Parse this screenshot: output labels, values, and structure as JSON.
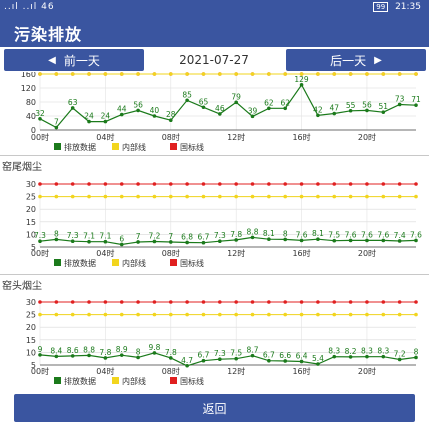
{
  "status_bar": {
    "signal": "..ıl ..ıl 46",
    "battery": "99",
    "time": "21:35"
  },
  "header": {
    "title": "污染排放"
  },
  "nav": {
    "prev_label": "前一天",
    "date": "2021-07-27",
    "next_label": "后一天"
  },
  "back_label": "返回",
  "colors": {
    "accent": "#3a55a0",
    "emission": "#1b7a1b",
    "internal": "#f2d51e",
    "national": "#e02020"
  },
  "charts": {
    "c1": {
      "title": "",
      "legend": {
        "emission": "排放数据",
        "internal": "内部线",
        "national": "国标线"
      }
    },
    "c2": {
      "title": "窑尾烟尘",
      "legend": {
        "emission": "排放数据",
        "internal": "内部线",
        "national": "国标线"
      }
    },
    "c3": {
      "title": "窑头烟尘",
      "legend": {
        "emission": "排放数据",
        "internal": "内部线",
        "national": "国标线"
      }
    }
  },
  "chart_data": [
    {
      "type": "line",
      "title": "",
      "x": [
        "00时",
        "01时",
        "02时",
        "03时",
        "04时",
        "05时",
        "06时",
        "07时",
        "08时",
        "09时",
        "10时",
        "11时",
        "12时",
        "13时",
        "14时",
        "15时",
        "16时",
        "17时",
        "18时",
        "19时",
        "20时",
        "21时",
        "22时",
        "23时"
      ],
      "x_tick_labels": [
        "00时",
        "04时",
        "08时",
        "12时",
        "16时",
        "20时"
      ],
      "ylim": [
        0,
        160
      ],
      "y_ticks": [
        0,
        40,
        80,
        120,
        160
      ],
      "series": [
        {
          "name": "排放数据",
          "values": [
            32,
            7,
            63,
            24,
            24,
            44,
            56,
            40,
            28,
            85,
            65,
            46,
            79,
            39,
            62,
            62,
            129,
            42,
            47,
            55,
            56,
            51,
            73,
            71
          ],
          "data_labels": [
            "32",
            "7",
            "63",
            "24",
            "24",
            "44",
            "56",
            "40",
            "28",
            "85",
            "65",
            "46",
            "79",
            "39",
            "62",
            "62",
            "129",
            "42",
            "47",
            "55",
            "56",
            "51",
            "73",
            "71"
          ]
        },
        {
          "name": "内部线",
          "constant": 160
        },
        {
          "name": "国标线",
          "constant": 160
        }
      ],
      "legend": "bottom",
      "grid": true
    },
    {
      "type": "line",
      "title": "窑尾烟尘",
      "x": [
        "00时",
        "01时",
        "02时",
        "03时",
        "04时",
        "05时",
        "06时",
        "07时",
        "08时",
        "09时",
        "10时",
        "11时",
        "12时",
        "13时",
        "14时",
        "15时",
        "16时",
        "17时",
        "18时",
        "19时",
        "20时",
        "21时",
        "22时",
        "23时"
      ],
      "x_tick_labels": [
        "00时",
        "04时",
        "08时",
        "12时",
        "16时",
        "20时"
      ],
      "ylim": [
        5,
        30
      ],
      "y_ticks": [
        5,
        10,
        15,
        20,
        25,
        30
      ],
      "series": [
        {
          "name": "排放数据",
          "values": [
            7.3,
            8.0,
            7.3,
            7.1,
            7.1,
            6.0,
            7.0,
            7.2,
            7.0,
            6.8,
            6.7,
            7.3,
            7.8,
            8.8,
            8.1,
            8.0,
            7.6,
            8.1,
            7.5,
            7.6,
            7.6,
            7.6,
            7.4,
            7.6
          ],
          "data_labels": [
            "7.3",
            "8",
            "7.3",
            "7.1",
            "7.1",
            "6",
            "7",
            "7.2",
            "7",
            "6.8",
            "6.7",
            "7.3",
            "7.8",
            "8.8",
            "8.1",
            "8",
            "7.6",
            "8.1",
            "7.5",
            "7.6",
            "7.6",
            "7.6",
            "7.4",
            "7.6"
          ]
        },
        {
          "name": "内部线",
          "constant": 25
        },
        {
          "name": "国标线",
          "constant": 30
        }
      ],
      "legend": "bottom",
      "grid": true
    },
    {
      "type": "line",
      "title": "窑头烟尘",
      "x": [
        "00时",
        "01时",
        "02时",
        "03时",
        "04时",
        "05时",
        "06时",
        "07时",
        "08时",
        "09时",
        "10时",
        "11时",
        "12时",
        "13时",
        "14时",
        "15时",
        "16时",
        "17时",
        "18时",
        "19时",
        "20时",
        "21时",
        "22时",
        "23时"
      ],
      "x_tick_labels": [
        "00时",
        "04时",
        "08时",
        "12时",
        "16时",
        "20时"
      ],
      "ylim": [
        5,
        30
      ],
      "y_ticks": [
        5,
        10,
        15,
        20,
        25,
        30
      ],
      "series": [
        {
          "name": "排放数据",
          "values": [
            9.0,
            8.4,
            8.6,
            8.8,
            7.8,
            8.9,
            8.0,
            9.8,
            7.8,
            4.7,
            6.7,
            7.3,
            7.5,
            8.7,
            6.7,
            6.6,
            6.4,
            5.4,
            8.3,
            8.2,
            8.3,
            8.3,
            7.2,
            8.0
          ],
          "data_labels": [
            "9",
            "8.4",
            "8.6",
            "8.8",
            "7.8",
            "8.9",
            "8",
            "9.8",
            "7.8",
            "4.7",
            "6.7",
            "7.3",
            "7.5",
            "8.7",
            "6.7",
            "6.6",
            "6.4",
            "5.4",
            "8.3",
            "8.2",
            "8.3",
            "8.3",
            "7.2",
            "8"
          ]
        },
        {
          "name": "内部线",
          "constant": 25
        },
        {
          "name": "国标线",
          "constant": 30
        }
      ],
      "legend": "bottom",
      "grid": true
    }
  ]
}
